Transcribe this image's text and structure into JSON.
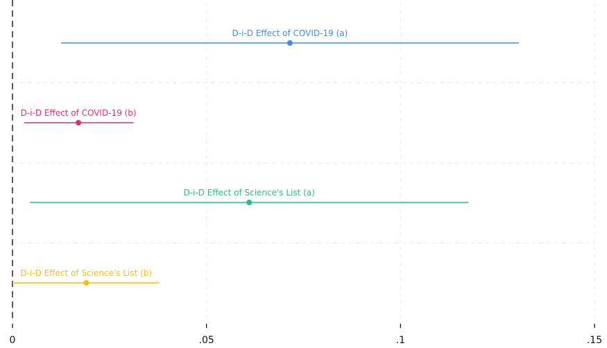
{
  "chart_data": {
    "type": "scatter",
    "title": "",
    "xlabel": "",
    "ylabel": "",
    "xlim": [
      0,
      0.15
    ],
    "x_ticks": [
      0,
      0.05,
      0.1,
      0.15
    ],
    "x_tick_labels": [
      "0",
      ".05",
      ".1",
      ".15"
    ],
    "grid": true,
    "reference_line": {
      "x": 0,
      "style": "dashed",
      "color": "#000000"
    },
    "series": [
      {
        "name": "D-i-D Effect of COVID-19 (a)",
        "estimate": 0.0715,
        "ci": [
          0.0125,
          0.1305
        ],
        "color": "#3a8ee6"
      },
      {
        "name": "D-i-D Effect of COVID-19 (b)",
        "estimate": 0.017,
        "ci": [
          0.003,
          0.0312
        ],
        "color": "#d6336c"
      },
      {
        "name": "D-i-D Effect of Science's List (a)",
        "estimate": 0.061,
        "ci": [
          0.0045,
          0.1175
        ],
        "color": "#20c080"
      },
      {
        "name": "D-i-D Effect of Science's List (b)",
        "estimate": 0.019,
        "ci": [
          0.0,
          0.0378
        ],
        "color": "#f2c200"
      }
    ]
  }
}
